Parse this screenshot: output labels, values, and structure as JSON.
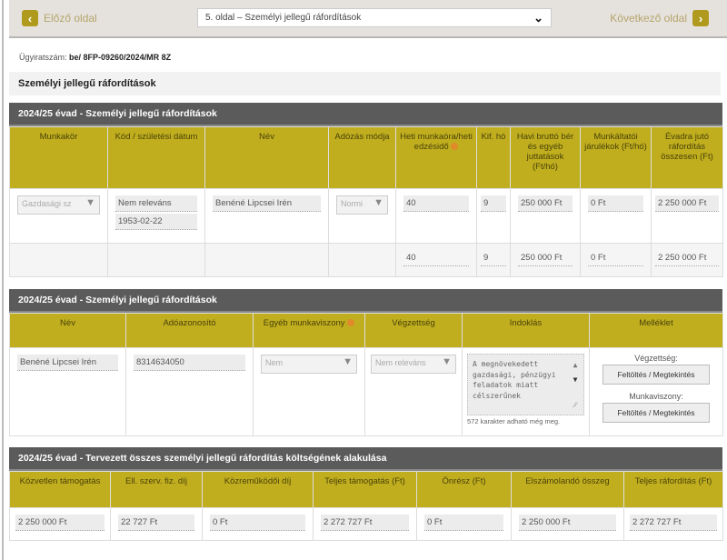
{
  "nav": {
    "prev_label": "Előző oldal",
    "next_label": "Következő oldal",
    "page_select": "5. oldal – Személyi jellegű ráfordítások",
    "prev_icon": "chevron-left-icon",
    "next_icon": "chevron-right-icon"
  },
  "case": {
    "label": "Ügyiratszám:",
    "value": "be/ 8FP-09260/2024/MR 8Z"
  },
  "section_title": "Személyi jellegű ráfordítások",
  "table1": {
    "title": "2024/25 évad - Személyi jellegű ráfordítások",
    "headers": [
      "Munkakör",
      "Kód / születési dátum",
      "Név",
      "Adózás módja",
      "Heti munkaóra/heti edzésidő",
      "Kif. hó",
      "Havi bruttó bér és egyéb juttatások (Ft/hó)",
      "Munkáltatói járulékok (Ft/hó)",
      "Évadra jutó ráfordítás összesen (Ft)"
    ],
    "row": {
      "munkakor": "Gazdasági sz",
      "kod": "Nem releváns",
      "szuletesi": "1953-02-22",
      "nev": "Benéné Lipcsei Irén",
      "adozas": "Normi",
      "heti": "40",
      "ho": "9",
      "havi": "250 000 Ft",
      "jarulek": "0 Ft",
      "osszesen": "2 250 000 Ft"
    },
    "total": {
      "heti": "40",
      "ho": "9",
      "havi": "250 000 Ft",
      "jarulek": "0 Ft",
      "osszesen": "2 250 000 Ft"
    }
  },
  "table2": {
    "title": "2024/25 évad - Személyi jellegű ráfordítások",
    "headers": [
      "Név",
      "Adóazonosító",
      "Egyéb munkaviszony",
      "Végzettség",
      "Indoklás",
      "Melléklet"
    ],
    "row": {
      "nev": "Benéné Lipcsei Irén",
      "adoazonosito": "8314634050",
      "egyeb": "Nem",
      "vegzettseg": "Nem releváns",
      "indoklas": "A megnövekedett gazdasági, pénzügyi feladatok miatt célszerűnek",
      "counter": "572 karakter adható még meg.",
      "vegzettseg_label": "Végzettség:",
      "munkaviszony_label": "Munkaviszony:",
      "upload_label": "Feltöltés / Megtekintés"
    }
  },
  "table3": {
    "title": "2024/25 évad - Tervezett összes személyi jellegű ráfordítás költségének alakulása",
    "headers": [
      "Közvetlen támogatás",
      "Ell. szerv. fiz. díj",
      "Közreműködői díj",
      "Teljes támogatás (Ft)",
      "Önrész (Ft)",
      "Elszámolandó összeg",
      "Teljes ráfordítás (Ft)"
    ],
    "values": [
      "2 250 000 Ft",
      "22 727 Ft",
      "0 Ft",
      "2 272 727 Ft",
      "0 Ft",
      "2 250 000 Ft",
      "2 272 727 Ft"
    ]
  },
  "colors": {
    "gold": "#c0ae1f",
    "dark_bar": "#5b5b5b",
    "nav_bg": "#e5e2de"
  }
}
